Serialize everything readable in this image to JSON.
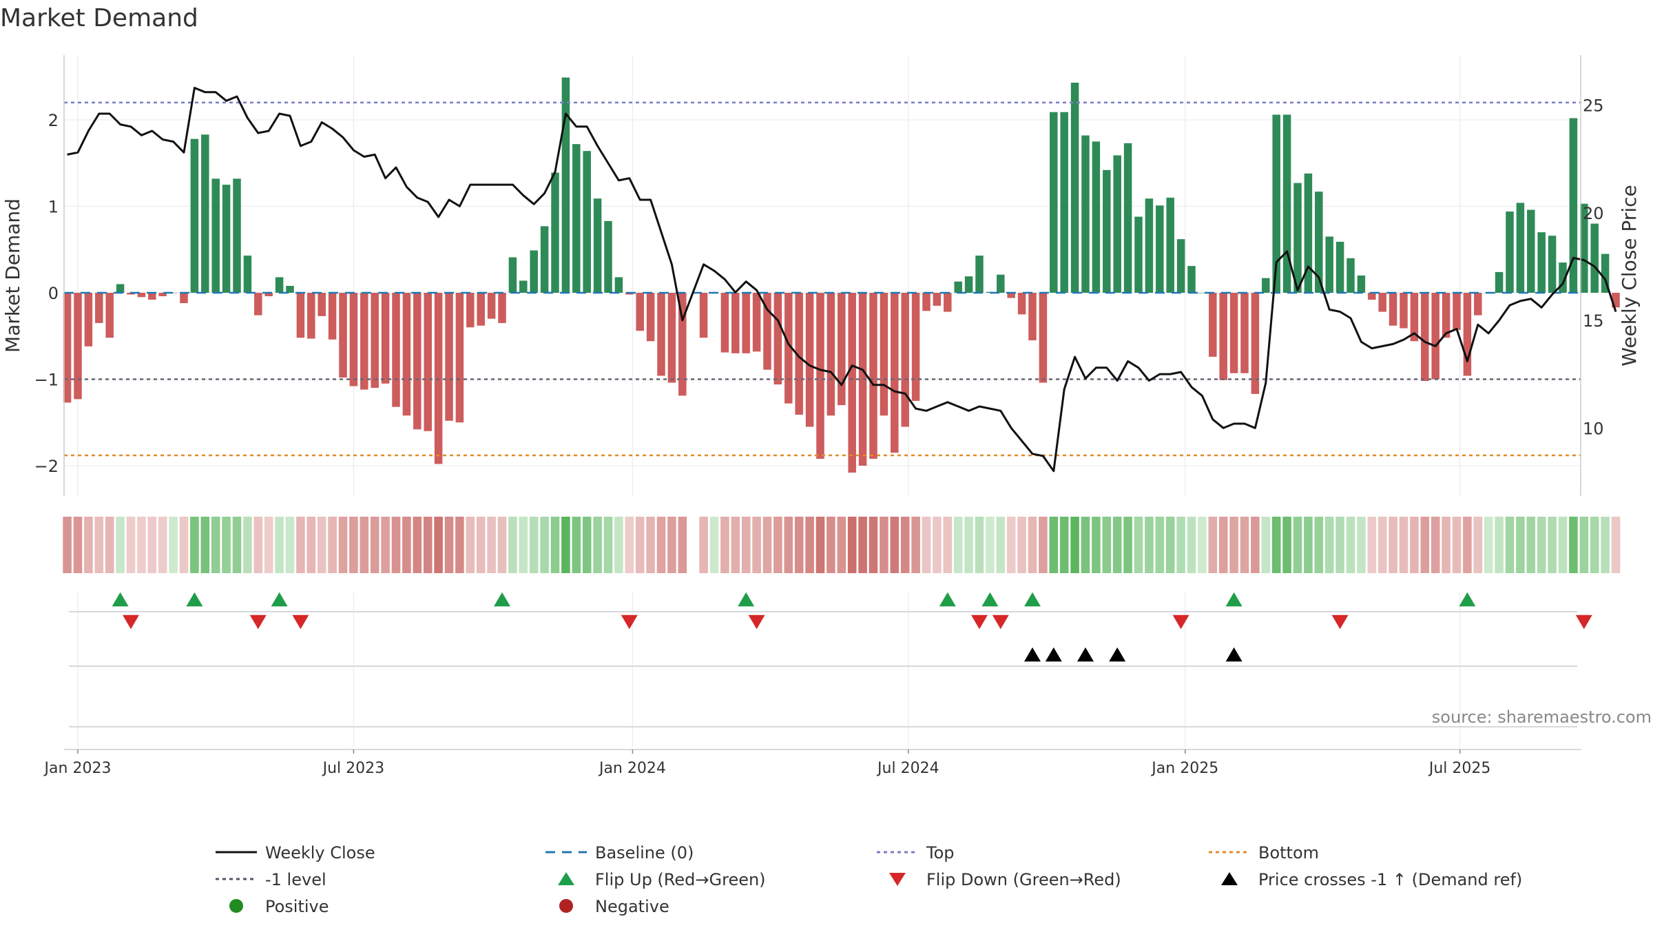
{
  "chart_data": {
    "type": "bar",
    "title": "Market Demand",
    "ylabel": "Market Demand",
    "y2label": "Weekly Close Price",
    "ylim": [
      -2.35,
      2.6
    ],
    "y2lim": [
      7.0,
      27.0
    ],
    "yticks": [
      -2,
      -1,
      0,
      1,
      2
    ],
    "y2ticks": [
      10,
      15,
      20,
      25
    ],
    "x_tick_labels": [
      "Jan 2023",
      "Jul 2023",
      "Jan 2024",
      "Jul 2024",
      "Jan 2025",
      "Jul 2025"
    ],
    "x_tick_weeks": [
      0,
      26,
      52.3,
      78.3,
      104.4,
      130.3
    ],
    "top_level": 2.2,
    "bottom_level": -1.88,
    "minus_one_level": -1,
    "baseline": 0,
    "start_week": -1,
    "missing_weeks": [
      58
    ],
    "demand": [
      -1.27,
      -1.23,
      -0.62,
      -0.35,
      -0.52,
      0.1,
      -0.02,
      -0.05,
      -0.08,
      -0.04,
      0.0,
      -0.12,
      1.78,
      1.83,
      1.32,
      1.25,
      1.32,
      0.43,
      -0.26,
      -0.04,
      0.18,
      0.08,
      -0.52,
      -0.53,
      -0.27,
      -0.54,
      -0.98,
      -1.08,
      -1.12,
      -1.1,
      -1.05,
      -1.32,
      -1.42,
      -1.58,
      -1.6,
      -1.98,
      -1.48,
      -1.5,
      -0.4,
      -0.38,
      -0.3,
      -0.35,
      0.41,
      0.14,
      0.49,
      0.77,
      1.39,
      2.49,
      1.72,
      1.64,
      1.09,
      0.83,
      0.18,
      -0.02,
      -0.44,
      -0.56,
      -0.96,
      -1.04,
      -1.19,
      -0.52,
      0.0,
      -0.69,
      -0.7,
      -0.7,
      -0.68,
      -0.89,
      -1.06,
      -1.28,
      -1.41,
      -1.55,
      -1.92,
      -1.42,
      -1.3,
      -2.08,
      -2.0,
      -1.92,
      -1.42,
      -1.85,
      -1.55,
      -1.25,
      -0.21,
      -0.15,
      -0.22,
      0.13,
      0.19,
      0.43,
      0.01,
      0.21,
      -0.06,
      -0.25,
      -0.55,
      -1.04,
      2.09,
      2.09,
      2.43,
      1.82,
      1.75,
      1.42,
      1.59,
      1.73,
      0.88,
      1.09,
      1.01,
      1.1,
      0.62,
      0.31,
      0.0,
      -0.74,
      -1.01,
      -0.93,
      -0.93,
      -1.17,
      0.17,
      2.06,
      2.06,
      1.27,
      1.38,
      1.17,
      0.65,
      0.59,
      0.4,
      0.2,
      -0.08,
      -0.22,
      -0.38,
      -0.41,
      -0.56,
      -1.02,
      -1.0,
      -0.52,
      -0.43,
      -0.96,
      -0.26,
      0.0,
      0.24,
      0.94,
      1.04,
      0.96,
      0.7,
      0.66,
      0.35,
      2.02,
      1.03,
      0.8,
      0.45,
      -0.17
    ],
    "weekly_close": [
      22.7,
      22.8,
      23.8,
      24.6,
      24.6,
      24.1,
      24.0,
      23.6,
      23.8,
      23.4,
      23.3,
      22.8,
      25.8,
      25.6,
      25.6,
      25.2,
      25.4,
      24.4,
      23.7,
      23.8,
      24.6,
      24.5,
      23.1,
      23.3,
      24.2,
      23.9,
      23.5,
      22.9,
      22.6,
      22.7,
      21.6,
      22.1,
      21.2,
      20.7,
      20.5,
      19.8,
      20.6,
      20.3,
      21.3,
      21.3,
      21.3,
      21.3,
      21.3,
      20.8,
      20.4,
      20.9,
      21.9,
      24.6,
      24.0,
      24.0,
      23.1,
      22.3,
      21.5,
      21.6,
      20.6,
      20.6,
      19.1,
      17.6,
      15.0,
      17.6,
      17.3,
      16.9,
      16.3,
      16.8,
      16.4,
      15.5,
      15.0,
      13.9,
      13.3,
      12.9,
      12.7,
      12.6,
      12.0,
      12.9,
      12.7,
      12.0,
      12.0,
      11.7,
      11.6,
      10.9,
      10.8,
      11.0,
      11.2,
      11.0,
      10.8,
      11.0,
      10.9,
      10.8,
      10.0,
      9.4,
      8.8,
      8.7,
      8.0,
      11.8,
      13.3,
      12.3,
      12.8,
      12.8,
      12.2,
      13.1,
      12.8,
      12.2,
      12.5,
      12.5,
      12.6,
      11.9,
      11.5,
      10.4,
      10.0,
      10.2,
      10.2,
      10.0,
      12.1,
      17.7,
      18.2,
      16.4,
      17.5,
      17.0,
      15.5,
      15.4,
      15.1,
      14.0,
      13.7,
      13.8,
      13.9,
      14.1,
      14.4,
      14.0,
      13.8,
      14.4,
      14.6,
      13.1,
      14.8,
      14.4,
      15.0,
      15.7,
      15.9,
      16.0,
      15.6,
      16.2,
      16.7,
      17.9,
      17.8,
      17.5,
      16.9,
      15.4
    ],
    "flip_up_weeks": [
      4,
      11,
      19,
      40,
      63,
      82,
      86,
      90,
      109,
      131
    ],
    "flip_down_weeks": [
      5,
      17,
      21,
      52,
      64,
      85,
      87,
      104,
      119,
      142
    ],
    "price_cross_weeks": [
      90,
      92,
      95,
      98,
      109
    ],
    "colors": {
      "positive_bar": "#2e8b57",
      "negative_bar": "#cd5c5c",
      "weekly_close": "#111111",
      "baseline": "#1f77b4",
      "top": "#7b7bc8",
      "bottom": "#e08a2a",
      "minus_one": "#666677",
      "flip_up": "#1f9e4a",
      "flip_down": "#d62728",
      "price_cross": "#000000",
      "positive_dot": "#228b22",
      "negative_dot": "#b22222"
    },
    "legend": [
      {
        "label": "Weekly Close",
        "kind": "line",
        "color": "#111111"
      },
      {
        "label": "Baseline (0)",
        "kind": "dash",
        "color": "#1f77b4"
      },
      {
        "label": "Top",
        "kind": "dot",
        "color": "#7b7bc8"
      },
      {
        "label": "Bottom",
        "kind": "dot",
        "color": "#e08a2a"
      },
      {
        "label": "-1 level",
        "kind": "dot",
        "color": "#555566"
      },
      {
        "label": "Flip Up (Red→Green)",
        "kind": "tri-up",
        "color": "#1f9e4a"
      },
      {
        "label": "Flip Down (Green→Red)",
        "kind": "tri-down",
        "color": "#d62728"
      },
      {
        "label": "Price crosses -1 ↑ (Demand ref)",
        "kind": "tri-up",
        "color": "#000000"
      },
      {
        "label": "Positive",
        "kind": "circle",
        "color": "#228b22"
      },
      {
        "label": "Negative",
        "kind": "circle",
        "color": "#b22222"
      }
    ],
    "source_note": "source: sharemaestro.com"
  }
}
